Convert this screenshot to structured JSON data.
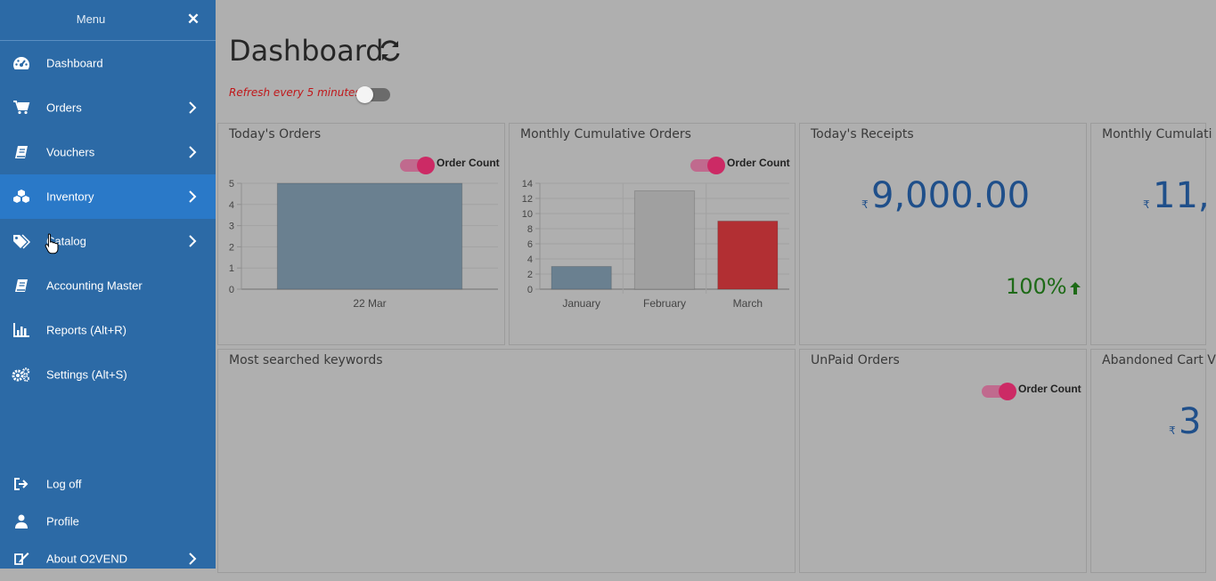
{
  "sidebar": {
    "title": "Menu",
    "close_icon": "close-icon",
    "items": [
      {
        "label": "Dashboard",
        "icon": "dashboard-icon"
      },
      {
        "label": "Orders",
        "icon": "cart-icon"
      },
      {
        "label": "Vouchers",
        "icon": "book-icon"
      },
      {
        "label": "Inventory",
        "icon": "cubes-icon"
      },
      {
        "label": "Catalog",
        "icon": "tags-icon"
      },
      {
        "label": "Accounting Master",
        "icon": "book-icon"
      },
      {
        "label": "Reports (Alt+R)",
        "icon": "bar-chart-icon"
      },
      {
        "label": "Settings (Alt+S)",
        "icon": "gears-icon"
      }
    ],
    "bottom_items": [
      {
        "label": "Log off",
        "icon": "sign-out-icon"
      },
      {
        "label": "Profile",
        "icon": "user-icon"
      },
      {
        "label": "About O2VEND",
        "icon": "edit-icon"
      }
    ],
    "active_item": "Inventory",
    "colors": {
      "background": "#2c6aa6",
      "active": "#2a79c8"
    }
  },
  "header": {
    "title": "Dashboard",
    "refresh_text": "Refresh every 5 minutes",
    "auto_refresh": false
  },
  "cards": {
    "todays_orders": {
      "title": "Today's Orders",
      "toggle_label": "Order Count",
      "toggle_on": true,
      "chart_data": {
        "type": "bar",
        "categories": [
          "22 Mar"
        ],
        "values": [
          5
        ],
        "yticks": [
          "0",
          "1",
          "2",
          "3",
          "4",
          "5"
        ],
        "ylim": [
          0,
          5
        ],
        "colors": [
          "#6a8090"
        ]
      }
    },
    "monthly_orders": {
      "title": "Monthly Cumulative Orders",
      "toggle_label": "Order Count",
      "toggle_on": true,
      "chart_data": {
        "type": "bar",
        "categories": [
          "January",
          "February",
          "March"
        ],
        "values": [
          3,
          13,
          9
        ],
        "yticks": [
          "0",
          "2",
          "4",
          "6",
          "8",
          "10",
          "12",
          "14"
        ],
        "ylim": [
          0,
          14
        ],
        "colors": [
          "#6a8090",
          "#a0a0a0",
          "#b22f33"
        ]
      }
    },
    "todays_receipts": {
      "title": "Today's Receipts",
      "currency": "₹",
      "amount": "9,000.00",
      "percent": "100%",
      "trend_icon": "arrow-up-icon"
    },
    "monthly_receipts": {
      "title": "Monthly Cumulati",
      "currency": "₹",
      "amount": "11,"
    },
    "keywords": {
      "title": "Most searched keywords"
    },
    "unpaid": {
      "title": "UnPaid Orders",
      "toggle_label": "Order Count",
      "toggle_on": true
    },
    "abandoned": {
      "title": "Abandoned Cart V",
      "currency": "₹",
      "amount": "3"
    }
  }
}
